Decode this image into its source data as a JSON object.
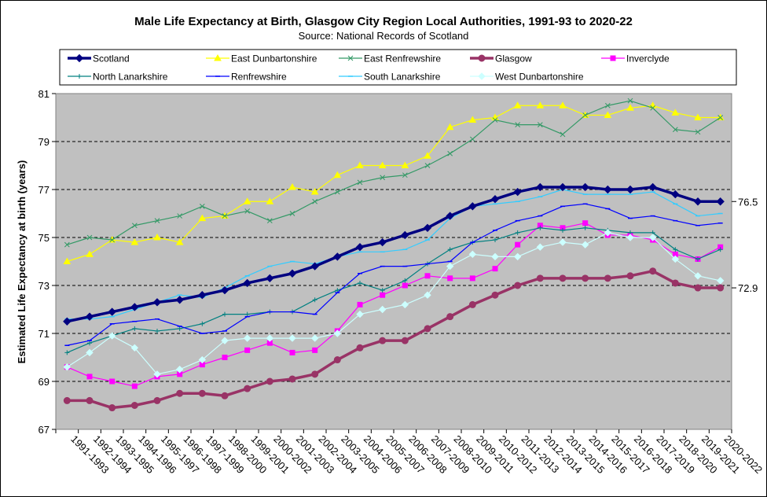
{
  "chart_data": {
    "type": "line",
    "title": "Male Life Expectancy at Birth, Glasgow City Region Local Authorities, 1991-93 to 2020-22",
    "subtitle": "Source: National Records of Scotland",
    "xlabel": "",
    "ylabel": "Estimated Life Expectancy at birth (years)",
    "ylim": [
      67,
      81
    ],
    "yticks": [
      67,
      69,
      71,
      73,
      75,
      77,
      79,
      81
    ],
    "grid": true,
    "legend_position": "top",
    "categories": [
      "1991-1993",
      "1992-1994",
      "1993-1995",
      "1994-1996",
      "1995-1997",
      "1996-1998",
      "1997-1999",
      "1998-2000",
      "1999-2001",
      "2000-2002",
      "2001-2003",
      "2002-2004",
      "2003-2005",
      "2004-2006",
      "2005-2007",
      "2006-2008",
      "2007-2009",
      "2008-2010",
      "2009-2011",
      "2010-2012",
      "2011-2013",
      "2012-2014",
      "2013-2015",
      "2014-2016",
      "2015-2017",
      "2016-2018",
      "2017-2019",
      "2018-2020",
      "2019-2021",
      "2020-2022"
    ],
    "annotations": [
      {
        "text": "76.5",
        "series": "Scotland"
      },
      {
        "text": "72.9",
        "series": "Glasgow"
      }
    ],
    "series": [
      {
        "name": "Scotland",
        "color": "#000080",
        "marker": "diamond",
        "bold": true,
        "values": [
          71.5,
          71.7,
          71.9,
          72.1,
          72.3,
          72.4,
          72.6,
          72.8,
          73.1,
          73.3,
          73.5,
          73.8,
          74.2,
          74.6,
          74.8,
          75.1,
          75.4,
          75.9,
          76.3,
          76.6,
          76.9,
          77.1,
          77.1,
          77.1,
          77.0,
          77.0,
          77.1,
          76.8,
          76.5,
          76.5
        ]
      },
      {
        "name": "East Dunbartonshire",
        "color": "#ffff00",
        "marker": "triangle",
        "values": [
          74.0,
          74.3,
          74.9,
          74.8,
          75.0,
          74.8,
          75.8,
          75.9,
          76.5,
          76.5,
          77.1,
          76.9,
          77.6,
          78.0,
          78.0,
          78.0,
          78.4,
          79.6,
          79.9,
          80.0,
          80.5,
          80.5,
          80.5,
          80.1,
          80.1,
          80.4,
          80.5,
          80.2,
          80.0,
          80.0
        ]
      },
      {
        "name": "East Renfrewshire",
        "color": "#339966",
        "marker": "x",
        "values": [
          74.7,
          75.0,
          74.9,
          75.5,
          75.7,
          75.9,
          76.3,
          75.9,
          76.1,
          75.7,
          76.0,
          76.5,
          76.9,
          77.3,
          77.5,
          77.6,
          78.0,
          78.5,
          79.1,
          79.9,
          79.7,
          79.7,
          79.3,
          80.1,
          80.5,
          80.7,
          80.4,
          79.5,
          79.4,
          80.0
        ]
      },
      {
        "name": "Glasgow",
        "color": "#993366",
        "marker": "circle",
        "bold": true,
        "values": [
          68.2,
          68.2,
          67.9,
          68.0,
          68.2,
          68.5,
          68.5,
          68.4,
          68.7,
          69.0,
          69.1,
          69.3,
          69.9,
          70.4,
          70.7,
          70.7,
          71.2,
          71.7,
          72.2,
          72.6,
          73.0,
          73.3,
          73.3,
          73.3,
          73.3,
          73.4,
          73.6,
          73.1,
          72.9,
          72.9
        ]
      },
      {
        "name": "Inverclyde",
        "color": "#ff00ff",
        "marker": "square",
        "values": [
          69.6,
          69.2,
          69.0,
          68.8,
          69.2,
          69.3,
          69.7,
          70.0,
          70.3,
          70.6,
          70.2,
          70.3,
          71.1,
          72.2,
          72.6,
          73.0,
          73.4,
          73.3,
          73.3,
          73.7,
          74.7,
          75.5,
          75.4,
          75.6,
          75.1,
          75.1,
          74.9,
          74.3,
          74.1,
          74.6
        ]
      },
      {
        "name": "North Lanarkshire",
        "color": "#008080",
        "marker": "plus",
        "values": [
          70.2,
          70.6,
          70.9,
          71.2,
          71.1,
          71.2,
          71.4,
          71.8,
          71.8,
          71.9,
          71.9,
          72.4,
          72.8,
          73.1,
          72.8,
          73.2,
          73.9,
          74.5,
          74.8,
          74.9,
          75.2,
          75.4,
          75.3,
          75.4,
          75.3,
          75.2,
          75.2,
          74.5,
          74.1,
          74.5
        ]
      },
      {
        "name": "Renfrewshire",
        "color": "#0000ff",
        "marker": "dash",
        "values": [
          70.5,
          70.7,
          71.4,
          71.5,
          71.6,
          71.3,
          71.0,
          71.1,
          71.7,
          71.9,
          71.9,
          71.8,
          72.7,
          73.5,
          73.8,
          73.8,
          73.9,
          74.0,
          74.8,
          75.3,
          75.7,
          75.9,
          76.3,
          76.4,
          76.2,
          75.8,
          75.9,
          75.7,
          75.5,
          75.6
        ]
      },
      {
        "name": "South Lanarkshire",
        "color": "#33ccff",
        "marker": "dash",
        "values": [
          71.6,
          71.6,
          71.7,
          72.0,
          72.3,
          72.6,
          72.5,
          72.9,
          73.4,
          73.8,
          74.0,
          73.9,
          74.2,
          74.4,
          74.4,
          74.5,
          74.9,
          75.8,
          76.3,
          76.4,
          76.5,
          76.7,
          77.0,
          76.8,
          76.8,
          76.8,
          76.9,
          76.4,
          75.9,
          76.0
        ]
      },
      {
        "name": "West Dunbartonshire",
        "color": "#ccffff",
        "marker": "diamond",
        "values": [
          69.6,
          70.2,
          70.9,
          70.4,
          69.3,
          69.5,
          69.9,
          70.7,
          70.8,
          70.8,
          70.8,
          70.8,
          71.0,
          71.8,
          72.0,
          72.2,
          72.6,
          73.8,
          74.3,
          74.2,
          74.2,
          74.6,
          74.8,
          74.7,
          75.2,
          75.0,
          75.0,
          74.1,
          73.4,
          73.2
        ]
      }
    ]
  }
}
